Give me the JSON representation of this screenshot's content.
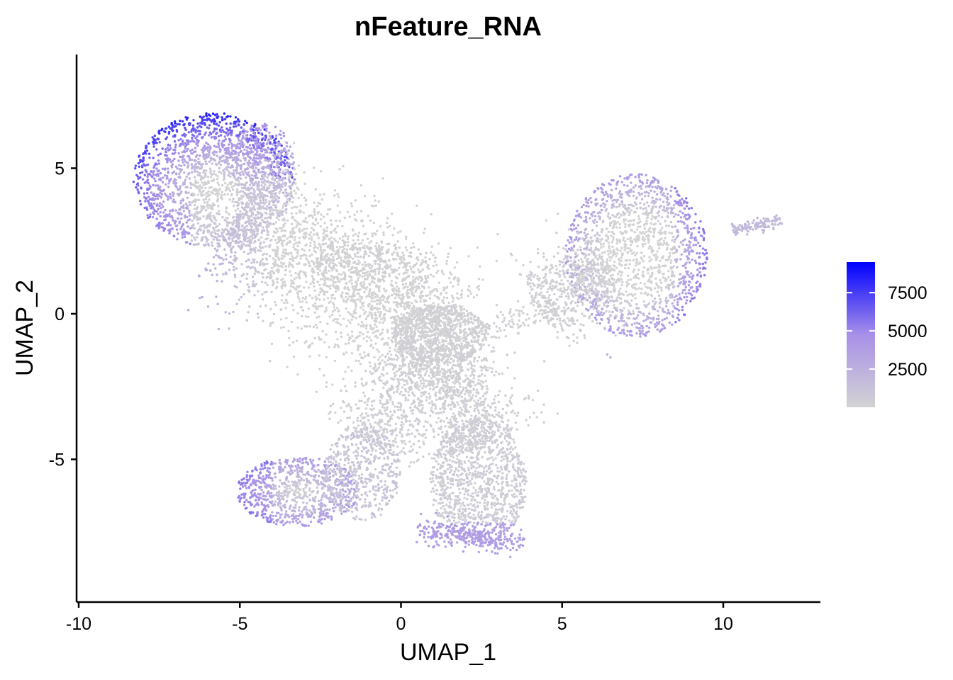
{
  "chart_data": {
    "type": "scatter",
    "title": "nFeature_RNA",
    "xlabel": "UMAP_1",
    "ylabel": "UMAP_2",
    "xlim": [
      -10,
      13
    ],
    "ylim": [
      -10,
      9
    ],
    "xticks": [
      -10,
      -5,
      0,
      5,
      10
    ],
    "xtick_labels": [
      "-10",
      "-5",
      "0",
      "5",
      "10"
    ],
    "yticks": [
      -5,
      0,
      5
    ],
    "ytick_labels": [
      "-5",
      "0",
      "5"
    ],
    "grid": false,
    "legend": {
      "placement": "right",
      "type": "colorbar",
      "range": [
        0,
        9500
      ],
      "ticks": [
        2500,
        5000,
        7500
      ],
      "tick_labels": [
        "2500",
        "5000",
        "7500"
      ],
      "low_color": "#d3d3d3",
      "high_color": "#0000ff"
    },
    "point_color_low": "#d3d3d3",
    "point_color_high": "#0000ff",
    "clusters": [
      {
        "name": "upper-left lobe",
        "center": [
          -5.5,
          4.2
        ],
        "extent": [
          -8.2,
          0.5,
          -3.5,
          7.2
        ]
      },
      {
        "name": "central stem",
        "center": [
          -1.5,
          1.0
        ],
        "extent": [
          -4.0,
          -0.5,
          2.5,
          3.0
        ]
      },
      {
        "name": "center crossing",
        "center": [
          1.0,
          -0.8
        ],
        "extent": [
          -1.0,
          -2.5,
          2.8,
          0.8
        ]
      },
      {
        "name": "lower lobe left",
        "center": [
          -3.5,
          -6.2
        ],
        "extent": [
          -5.0,
          -7.2,
          -1.0,
          -4.5
        ]
      },
      {
        "name": "lower lobe right",
        "center": [
          2.0,
          -5.5
        ],
        "extent": [
          0.5,
          -8.3,
          4.0,
          -2.5
        ]
      },
      {
        "name": "right lobe",
        "center": [
          7.5,
          2.5
        ],
        "extent": [
          4.0,
          -1.5,
          9.6,
          5.3
        ]
      },
      {
        "name": "far right streak",
        "center": [
          11.0,
          3.0
        ],
        "extent": [
          10.3,
          2.8,
          11.8,
          3.3
        ]
      }
    ]
  }
}
